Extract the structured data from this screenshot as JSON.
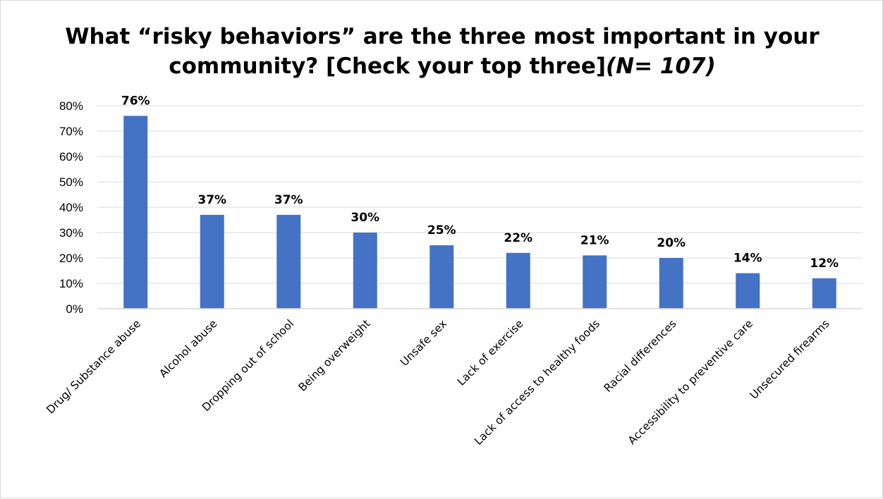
{
  "chart_data": {
    "type": "bar",
    "title": "What “risky behaviors” are the three most important in your community? [Check your top three]",
    "title_note": "(N= 107)",
    "categories": [
      "Drug/ Substance abuse",
      "Alcohol abuse",
      "Dropping out of school",
      "Being overweight",
      "Unsafe sex",
      "Lack of exercise",
      "Lack of access to healthy foods",
      "Racial differences",
      "Accessibility to preventive care",
      "Unsecured firearms"
    ],
    "values": [
      76,
      37,
      37,
      30,
      25,
      22,
      21,
      20,
      14,
      12
    ],
    "data_labels": [
      "76%",
      "37%",
      "37%",
      "30%",
      "25%",
      "22%",
      "21%",
      "20%",
      "14%",
      "12%"
    ],
    "yticks": [
      "0%",
      "10%",
      "20%",
      "30%",
      "40%",
      "50%",
      "60%",
      "70%",
      "80%"
    ],
    "ylim": [
      0,
      80
    ],
    "xlabel": "",
    "ylabel": "",
    "grid": true,
    "legend": "none",
    "bar_color": "#4472C4",
    "gridline_color": "#d9d9d9"
  }
}
